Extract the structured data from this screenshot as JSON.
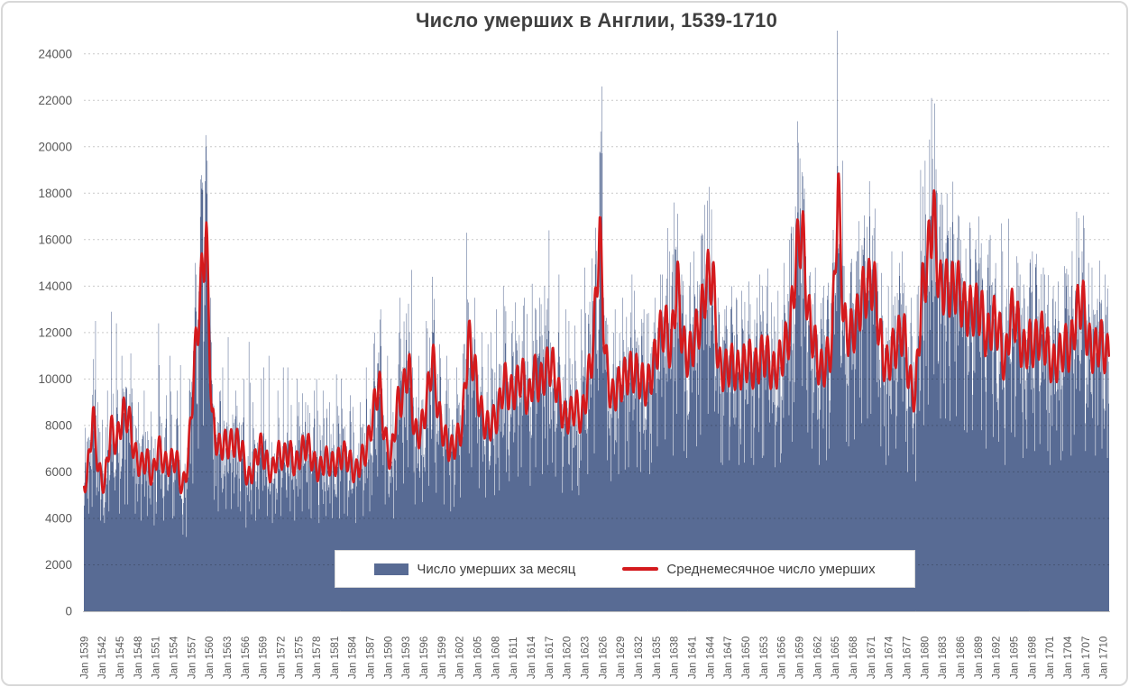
{
  "title": "Число умерших в Англии, 1539-1710",
  "legend": {
    "bars_label": "Число умерших за месяц",
    "line_label": "Среднемесячное число умерших"
  },
  "colors": {
    "bar": "#586B94",
    "line": "#D41A1D",
    "grid": "#C9C9C9",
    "axis_line": "#BFBFBF",
    "axis_text": "#595959",
    "title_text": "#3F3F3F",
    "legend_text": "#404040",
    "frame_border": "#D8D8D8"
  },
  "chart_data": {
    "type": "combo-bar-line",
    "title": "Число умерших в Англии, 1539-1710",
    "grid": "horizontal dotted",
    "legend_position": "bottom inside plot",
    "x": {
      "start_year": 1539,
      "end_year": 1710,
      "points_per_year": 12,
      "tick_labels": [
        "Jan 1539",
        "Jan 1542",
        "Jan 1545",
        "Jan 1548",
        "Jan 1551",
        "Jan 1554",
        "Jan 1557",
        "Jan 1560",
        "Jan 1563",
        "Jan 1566",
        "Jan 1569",
        "Jan 1572",
        "Jan 1575",
        "Jan 1578",
        "Jan 1581",
        "Jan 1584",
        "Jan 1587",
        "Jan 1590",
        "Jan 1593",
        "Jan 1596",
        "Jan 1599",
        "Jan 1602",
        "Jan 1605",
        "Jan 1608",
        "Jan 1611",
        "Jan 1614",
        "Jan 1617",
        "Jan 1620",
        "Jan 1623",
        "Jan 1626",
        "Jan 1629",
        "Jan 1632",
        "Jan 1635",
        "Jan 1638",
        "Jan 1641",
        "Jan 1644",
        "Jan 1647",
        "Jan 1650",
        "Jan 1653",
        "Jan 1656",
        "Jan 1659",
        "Jan 1662",
        "Jan 1665",
        "Jan 1668",
        "Jan 1671",
        "Jan 1674",
        "Jan 1677",
        "Jan 1680",
        "Jan 1683",
        "Jan 1686",
        "Jan 1689",
        "Jan 1692",
        "Jan 1695",
        "Jan 1698",
        "Jan 1701",
        "Jan 1704",
        "Jan 1707",
        "Jan 1710"
      ]
    },
    "y": {
      "min": 0,
      "max": 25000,
      "tick_step": 2000,
      "ticks": [
        0,
        2000,
        4000,
        6000,
        8000,
        10000,
        12000,
        14000,
        16000,
        18000,
        20000,
        22000,
        24000
      ]
    },
    "series": [
      {
        "name": "Число умерших за месяц",
        "type": "bar",
        "color": "#586B94",
        "note": "monthly bars; annual max/min envelope estimated from pixels, years 1539-1710",
        "annual_max": [
          7900,
          12500,
          9000,
          9500,
          12900,
          12400,
          11000,
          11100,
          9600,
          9000,
          9500,
          8600,
          12400,
          9300,
          11000,
          9500,
          10600,
          10000,
          15000,
          18600,
          20500,
          13500,
          9500,
          10500,
          11800,
          9500,
          10000,
          11600,
          9000,
          10000,
          10500,
          11000,
          9500,
          10500,
          10500,
          10000,
          9000,
          9000,
          9500,
          10000,
          9500,
          9000,
          10200,
          10000,
          9300,
          8800,
          9000,
          10500,
          12000,
          13000,
          11000,
          10000,
          12000,
          13500,
          14700,
          10500,
          11000,
          12500,
          14400,
          11500,
          11000,
          10000,
          10500,
          11500,
          16300,
          13500,
          12000,
          11500,
          12000,
          13000,
          14000,
          12500,
          13300,
          13500,
          12800,
          14100,
          13500,
          14000,
          16400,
          14500,
          13000,
          12500,
          12300,
          13000,
          14800,
          15200,
          22600,
          13500,
          12000,
          13000,
          13500,
          14500,
          13800,
          13000,
          12800,
          13500,
          14500,
          16500,
          15500,
          17600,
          14500,
          14000,
          15500,
          16200,
          17500,
          17300,
          13500,
          13000,
          14000,
          13500,
          13800,
          14200,
          13500,
          14500,
          14000,
          13300,
          13800,
          15000,
          16000,
          21100,
          19500,
          15500,
          14800,
          13500,
          14000,
          15000,
          25000,
          19400,
          15000,
          15500,
          16800,
          17000,
          16500,
          15000,
          14000,
          15500,
          15000,
          15500,
          13500,
          14000,
          19000,
          19400,
          22100,
          18000,
          17500,
          18500,
          17000,
          16000,
          16500,
          16000,
          17000,
          16000,
          16200,
          16700,
          15500,
          16900,
          15000,
          14500,
          15000,
          15500,
          14800,
          14500,
          14000,
          14200,
          14000,
          14500,
          17200,
          15500,
          15000,
          14800,
          15100,
          14500
        ],
        "annual_min": [
          4200,
          4500,
          3900,
          3800,
          4300,
          4200,
          4600,
          4600,
          4200,
          3900,
          4100,
          3700,
          4200,
          3900,
          4000,
          4100,
          3300,
          3200,
          5500,
          7000,
          8000,
          4800,
          4300,
          4400,
          4400,
          4500,
          4300,
          3600,
          3900,
          4400,
          4100,
          3800,
          4200,
          4100,
          4300,
          3900,
          4300,
          4400,
          4000,
          3800,
          4100,
          4000,
          4000,
          4200,
          4100,
          3800,
          4100,
          4300,
          5000,
          5800,
          4600,
          4000,
          5200,
          5500,
          6200,
          4600,
          4700,
          5400,
          6400,
          5100,
          4600,
          4300,
          4500,
          4900,
          6800,
          6200,
          5300,
          4900,
          5000,
          5200,
          6000,
          5600,
          5800,
          6200,
          5400,
          6200,
          5900,
          6300,
          6400,
          5800,
          5100,
          5200,
          5400,
          5000,
          5900,
          6800,
          9500,
          6500,
          5600,
          5900,
          6100,
          6200,
          6200,
          6000,
          5900,
          6400,
          7100,
          7400,
          6700,
          8500,
          6900,
          6600,
          7100,
          7600,
          8500,
          8600,
          6400,
          6300,
          6500,
          6300,
          6400,
          6600,
          6300,
          6600,
          6700,
          6200,
          6400,
          6800,
          7300,
          9000,
          9700,
          7700,
          7000,
          6300,
          6500,
          7000,
          10500,
          7300,
          7100,
          7400,
          8100,
          8300,
          8500,
          7100,
          6300,
          6700,
          7000,
          7300,
          6000,
          5600,
          8000,
          8900,
          10200,
          8300,
          8300,
          8200,
          8400,
          7800,
          7700,
          7800,
          7800,
          7000,
          7500,
          7300,
          6300,
          7700,
          7500,
          6600,
          7000,
          6900,
          7200,
          6900,
          6300,
          6500,
          6900,
          6700,
          7600,
          8100,
          6900,
          6700,
          7000,
          6600
        ]
      },
      {
        "name": "Среднемесячное число умерших",
        "type": "line",
        "color": "#D41A1D",
        "note": "smoothed average monthly deaths; annual values read from the red curve, years 1539-1710",
        "annual_avg": [
          5600,
          8500,
          6000,
          5400,
          7900,
          7200,
          8500,
          8400,
          6800,
          6200,
          6600,
          5700,
          7100,
          6300,
          6400,
          6600,
          5200,
          6500,
          10500,
          13500,
          16400,
          8300,
          7000,
          7200,
          7200,
          7300,
          7000,
          5600,
          6200,
          7200,
          6500,
          5900,
          6800,
          6600,
          6900,
          6200,
          6900,
          7200,
          6400,
          6000,
          6600,
          6300,
          6400,
          6800,
          6500,
          5900,
          6500,
          7000,
          8500,
          9900,
          7500,
          6400,
          8800,
          9300,
          10700,
          7600,
          7700,
          9000,
          11000,
          8500,
          7500,
          6900,
          7300,
          8000,
          11800,
          10500,
          8700,
          7900,
          8100,
          8500,
          10000,
          9300,
          9600,
          10300,
          8900,
          10300,
          9700,
          10400,
          10700,
          9500,
          8300,
          8400,
          8900,
          8200,
          9800,
          11500,
          16500,
          10900,
          9100,
          9600,
          10000,
          10300,
          10300,
          9900,
          9600,
          10500,
          11800,
          12400,
          11100,
          14400,
          11400,
          10900,
          11800,
          12600,
          14300,
          14500,
          10500,
          10300,
          10700,
          10300,
          10500,
          10900,
          10300,
          10900,
          11100,
          10200,
          10600,
          11300,
          12100,
          15300,
          16500,
          12800,
          11600,
          10300,
          10700,
          11500,
          18300,
          12300,
          11900,
          12300,
          13600,
          13900,
          14300,
          11900,
          10400,
          11100,
          11600,
          12200,
          9900,
          9200,
          13500,
          15000,
          17300,
          13900,
          14000,
          13800,
          14100,
          13100,
          12900,
          13000,
          13000,
          11600,
          12600,
          12200,
          10400,
          12850,
          12600,
          11050,
          11600,
          11450,
          12000,
          11450,
          10500,
          10900,
          11450,
          11200,
          12800,
          13500,
          11500,
          11100,
          11700,
          11000
        ]
      }
    ]
  }
}
